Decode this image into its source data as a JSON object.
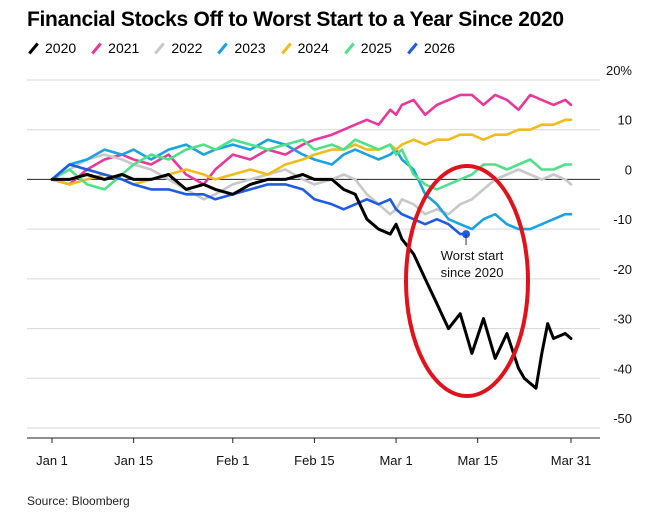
{
  "title": "Financial Stocks Off to Worst Start to a Year Since 2020",
  "source": "Source: Bloomberg",
  "colors": {
    "2020": "#000000",
    "2021": "#e8399a",
    "2022": "#c8c8c8",
    "2023": "#1aa3e0",
    "2024": "#f2bb1c",
    "2025": "#4fe08a",
    "2026": "#1f5be6",
    "annotation_ring": "#e0131d"
  },
  "chart_data": {
    "type": "line",
    "title": "Financial Stocks Off to Worst Start to a Year Since 2020",
    "xlabel": "",
    "ylabel": "",
    "x_unit": "days since Jan 1",
    "x_ticks": [
      {
        "label": "Jan 1",
        "x": 0
      },
      {
        "label": "Jan 15",
        "x": 14
      },
      {
        "label": "Feb 1",
        "x": 31
      },
      {
        "label": "Feb 15",
        "x": 45
      },
      {
        "label": "Mar 1",
        "x": 59
      },
      {
        "label": "Mar 15",
        "x": 73
      },
      {
        "label": "Mar 31",
        "x": 89
      }
    ],
    "y_ticks": [
      "20%",
      "10",
      "0",
      "-10",
      "-20",
      "-30",
      "-40",
      "-50"
    ],
    "y_tick_values": [
      20,
      10,
      0,
      -10,
      -20,
      -30,
      -40,
      -50
    ],
    "ylim": [
      -50,
      20
    ],
    "xlim": [
      0,
      89
    ],
    "legend_position": "top",
    "series": [
      {
        "name": "2020",
        "x": [
          0,
          3,
          6,
          9,
          12,
          14,
          17,
          20,
          23,
          26,
          28,
          31,
          34,
          37,
          40,
          43,
          45,
          48,
          50,
          52,
          54,
          56,
          58,
          59,
          60,
          62,
          64,
          66,
          68,
          70,
          72,
          74,
          76,
          78,
          80,
          81,
          82,
          83,
          84,
          85,
          86,
          88,
          89
        ],
        "y": [
          0,
          0,
          1,
          0,
          1,
          0,
          0,
          1,
          -2,
          -1,
          -2,
          -3,
          -1,
          0,
          0,
          1,
          0,
          0,
          -2,
          -3,
          -8,
          -10,
          -11,
          -9,
          -12,
          -15,
          -20,
          -25,
          -30,
          -27,
          -35,
          -28,
          -36,
          -31,
          -38,
          -40,
          -41,
          -42,
          -35,
          -29,
          -32,
          -31,
          -32
        ]
      },
      {
        "name": "2021",
        "x": [
          0,
          3,
          6,
          9,
          12,
          14,
          17,
          20,
          23,
          26,
          28,
          31,
          34,
          37,
          40,
          43,
          45,
          48,
          50,
          52,
          54,
          56,
          58,
          59,
          60,
          62,
          64,
          66,
          68,
          70,
          72,
          74,
          76,
          78,
          80,
          82,
          84,
          86,
          88,
          89
        ],
        "y": [
          0,
          -1,
          2,
          4,
          5,
          4,
          3,
          5,
          1,
          -1,
          2,
          5,
          4,
          6,
          5,
          7,
          8,
          9,
          10,
          11,
          12,
          11,
          14,
          13,
          15,
          16,
          13,
          15,
          16,
          17,
          17,
          15,
          17,
          16,
          14,
          17,
          16,
          15,
          16,
          15
        ]
      },
      {
        "name": "2022",
        "x": [
          0,
          3,
          6,
          9,
          12,
          14,
          17,
          20,
          23,
          26,
          28,
          31,
          34,
          37,
          40,
          43,
          45,
          48,
          50,
          52,
          54,
          56,
          58,
          59,
          60,
          62,
          64,
          66,
          68,
          70,
          72,
          74,
          76,
          78,
          80,
          82,
          84,
          86,
          88,
          89
        ],
        "y": [
          0,
          2,
          4,
          5,
          4,
          3,
          2,
          0,
          -2,
          -4,
          -3,
          -1,
          0,
          1,
          2,
          0,
          -1,
          0,
          1,
          0,
          -3,
          -5,
          -7,
          -6,
          -4,
          -5,
          -7,
          -6,
          -7,
          -5,
          -4,
          -2,
          0,
          1,
          2,
          1,
          0,
          1,
          0,
          -1
        ]
      },
      {
        "name": "2023",
        "x": [
          0,
          3,
          6,
          9,
          12,
          14,
          17,
          20,
          23,
          26,
          28,
          31,
          34,
          37,
          40,
          43,
          45,
          48,
          50,
          52,
          54,
          56,
          58,
          59,
          60,
          62,
          64,
          66,
          68,
          70,
          72,
          74,
          76,
          78,
          80,
          82,
          84,
          86,
          88,
          89
        ],
        "y": [
          0,
          3,
          4,
          6,
          5,
          6,
          4,
          6,
          7,
          5,
          6,
          7,
          6,
          8,
          7,
          5,
          4,
          3,
          5,
          6,
          5,
          4,
          5,
          6,
          4,
          2,
          -3,
          -5,
          -8,
          -9,
          -10,
          -8,
          -7,
          -9,
          -10,
          -10,
          -9,
          -8,
          -7,
          -7
        ]
      },
      {
        "name": "2024",
        "x": [
          0,
          3,
          6,
          9,
          12,
          14,
          17,
          20,
          23,
          26,
          28,
          31,
          34,
          37,
          40,
          43,
          45,
          48,
          50,
          52,
          54,
          56,
          58,
          59,
          60,
          62,
          64,
          66,
          68,
          70,
          72,
          74,
          76,
          78,
          80,
          82,
          84,
          86,
          88,
          89
        ],
        "y": [
          0,
          -1,
          0,
          1,
          0,
          -1,
          0,
          1,
          2,
          1,
          0,
          1,
          2,
          1,
          3,
          4,
          5,
          6,
          6,
          7,
          6,
          6,
          7,
          6,
          7,
          8,
          7,
          8,
          8,
          9,
          9,
          8,
          9,
          9,
          10,
          10,
          11,
          11,
          12,
          12
        ]
      },
      {
        "name": "2025",
        "x": [
          0,
          3,
          6,
          9,
          12,
          14,
          17,
          20,
          23,
          26,
          28,
          31,
          34,
          37,
          40,
          43,
          45,
          48,
          50,
          52,
          54,
          56,
          58,
          59,
          60,
          62,
          64,
          66,
          68,
          70,
          72,
          74,
          76,
          78,
          80,
          82,
          84,
          86,
          88,
          89
        ],
        "y": [
          0,
          2,
          -1,
          -2,
          1,
          3,
          5,
          4,
          6,
          7,
          6,
          8,
          7,
          6,
          7,
          8,
          6,
          7,
          6,
          8,
          7,
          6,
          7,
          5,
          6,
          1,
          -1,
          -2,
          -1,
          0,
          1,
          3,
          3,
          2,
          3,
          4,
          2,
          2,
          3,
          3
        ]
      },
      {
        "name": "2026",
        "x": [
          0,
          3,
          6,
          9,
          12,
          14,
          17,
          20,
          23,
          26,
          28,
          31,
          34,
          37,
          40,
          43,
          45,
          48,
          50,
          52,
          54,
          56,
          58,
          59,
          60,
          62,
          64,
          66,
          68,
          70,
          71
        ],
        "y": [
          0,
          3,
          2,
          1,
          0,
          -1,
          -2,
          -2,
          -3,
          -3,
          -4,
          -3,
          -2,
          -1,
          -1,
          -2,
          -4,
          -5,
          -6,
          -5,
          -4,
          -5,
          -4,
          -6,
          -7,
          -8,
          -9,
          -8,
          -9,
          -11,
          -11
        ]
      }
    ],
    "annotations": [
      {
        "text_lines": [
          "Worst start",
          "since 2020"
        ],
        "x": 71,
        "y": -11,
        "series": "2026"
      }
    ]
  }
}
